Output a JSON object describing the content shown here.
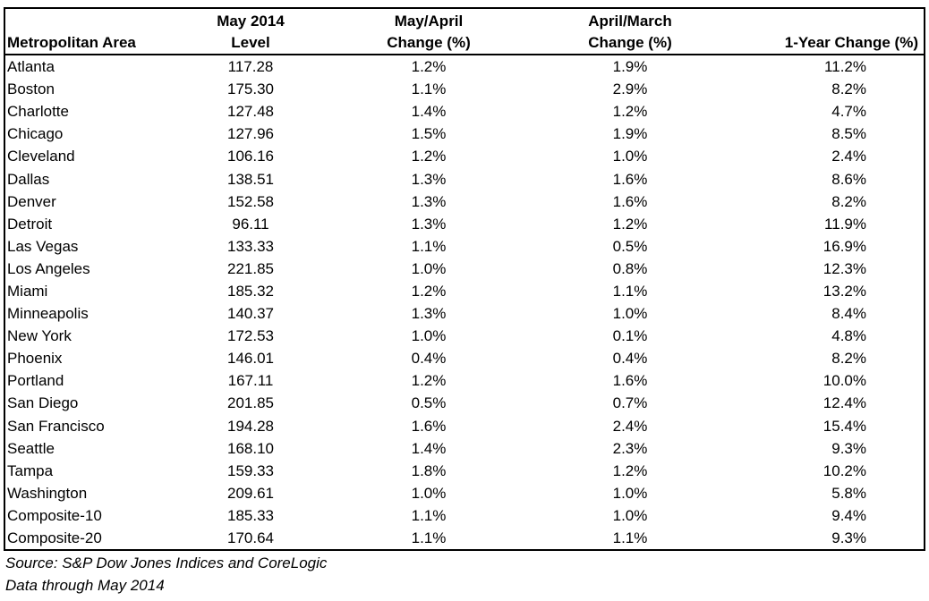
{
  "table": {
    "headers": {
      "area": "Metropolitan Area",
      "level_line1": "May 2014",
      "level_line2": "Level",
      "mayapr_line1": "May/April",
      "mayapr_line2": "Change (%)",
      "aprmar_line1": "April/March",
      "aprmar_line2": "Change (%)",
      "yoy": "1-Year Change (%)"
    },
    "rows": [
      {
        "area": "Atlanta",
        "level": "117.28",
        "mayapr": "1.2%",
        "aprmar": "1.9%",
        "yoy": "11.2%"
      },
      {
        "area": "Boston",
        "level": "175.30",
        "mayapr": "1.1%",
        "aprmar": "2.9%",
        "yoy": "8.2%"
      },
      {
        "area": "Charlotte",
        "level": "127.48",
        "mayapr": "1.4%",
        "aprmar": "1.2%",
        "yoy": "4.7%"
      },
      {
        "area": "Chicago",
        "level": "127.96",
        "mayapr": "1.5%",
        "aprmar": "1.9%",
        "yoy": "8.5%"
      },
      {
        "area": "Cleveland",
        "level": "106.16",
        "mayapr": "1.2%",
        "aprmar": "1.0%",
        "yoy": "2.4%"
      },
      {
        "area": "Dallas",
        "level": "138.51",
        "mayapr": "1.3%",
        "aprmar": "1.6%",
        "yoy": "8.6%"
      },
      {
        "area": "Denver",
        "level": "152.58",
        "mayapr": "1.3%",
        "aprmar": "1.6%",
        "yoy": "8.2%"
      },
      {
        "area": "Detroit",
        "level": "96.11",
        "mayapr": "1.3%",
        "aprmar": "1.2%",
        "yoy": "11.9%"
      },
      {
        "area": "Las Vegas",
        "level": "133.33",
        "mayapr": "1.1%",
        "aprmar": "0.5%",
        "yoy": "16.9%"
      },
      {
        "area": "Los Angeles",
        "level": "221.85",
        "mayapr": "1.0%",
        "aprmar": "0.8%",
        "yoy": "12.3%"
      },
      {
        "area": "Miami",
        "level": "185.32",
        "mayapr": "1.2%",
        "aprmar": "1.1%",
        "yoy": "13.2%"
      },
      {
        "area": "Minneapolis",
        "level": "140.37",
        "mayapr": "1.3%",
        "aprmar": "1.0%",
        "yoy": "8.4%"
      },
      {
        "area": "New York",
        "level": "172.53",
        "mayapr": "1.0%",
        "aprmar": "0.1%",
        "yoy": "4.8%"
      },
      {
        "area": "Phoenix",
        "level": "146.01",
        "mayapr": "0.4%",
        "aprmar": "0.4%",
        "yoy": "8.2%"
      },
      {
        "area": "Portland",
        "level": "167.11",
        "mayapr": "1.2%",
        "aprmar": "1.6%",
        "yoy": "10.0%"
      },
      {
        "area": "San Diego",
        "level": "201.85",
        "mayapr": "0.5%",
        "aprmar": "0.7%",
        "yoy": "12.4%"
      },
      {
        "area": "San Francisco",
        "level": "194.28",
        "mayapr": "1.6%",
        "aprmar": "2.4%",
        "yoy": "15.4%"
      },
      {
        "area": "Seattle",
        "level": "168.10",
        "mayapr": "1.4%",
        "aprmar": "2.3%",
        "yoy": "9.3%"
      },
      {
        "area": "Tampa",
        "level": "159.33",
        "mayapr": "1.8%",
        "aprmar": "1.2%",
        "yoy": "10.2%"
      },
      {
        "area": "Washington",
        "level": "209.61",
        "mayapr": "1.0%",
        "aprmar": "1.0%",
        "yoy": "5.8%"
      },
      {
        "area": "Composite-10",
        "level": "185.33",
        "mayapr": "1.1%",
        "aprmar": "1.0%",
        "yoy": "9.4%"
      },
      {
        "area": "Composite-20",
        "level": "170.64",
        "mayapr": "1.1%",
        "aprmar": "1.1%",
        "yoy": "9.3%"
      }
    ]
  },
  "notes": {
    "source": "Source: S&P Dow Jones Indices and CoreLogic",
    "data_through": "Data through May 2014"
  }
}
